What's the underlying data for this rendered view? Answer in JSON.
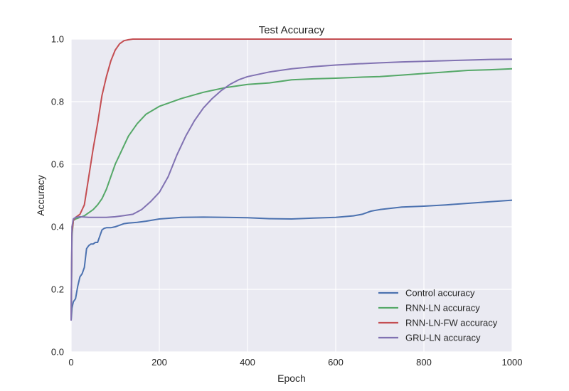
{
  "chart_data": {
    "type": "line",
    "title": "Test Accuracy",
    "xlabel": "Epoch",
    "ylabel": "Accuracy",
    "xlim": [
      0,
      1000
    ],
    "ylim": [
      0.0,
      1.0
    ],
    "xticks": [
      0,
      200,
      400,
      600,
      800,
      1000
    ],
    "yticks": [
      0.0,
      0.2,
      0.4,
      0.6,
      0.8,
      1.0
    ],
    "xtick_labels": [
      "0",
      "200",
      "400",
      "600",
      "800",
      "1000"
    ],
    "ytick_labels": [
      "0.0",
      "0.2",
      "0.4",
      "0.6",
      "0.8",
      "1.0"
    ],
    "grid": true,
    "legend_position": "lower-right",
    "series": [
      {
        "name": "Control accuracy",
        "color": "#4c72b0",
        "x": [
          0,
          2,
          5,
          10,
          15,
          20,
          25,
          30,
          35,
          40,
          45,
          50,
          55,
          60,
          65,
          70,
          75,
          80,
          90,
          100,
          110,
          120,
          130,
          140,
          150,
          170,
          200,
          250,
          300,
          350,
          400,
          450,
          500,
          550,
          600,
          640,
          660,
          680,
          700,
          750,
          800,
          850,
          900,
          950,
          1000
        ],
        "y": [
          0.1,
          0.14,
          0.16,
          0.17,
          0.21,
          0.24,
          0.25,
          0.27,
          0.33,
          0.34,
          0.345,
          0.345,
          0.35,
          0.35,
          0.37,
          0.39,
          0.395,
          0.397,
          0.397,
          0.4,
          0.405,
          0.41,
          0.412,
          0.413,
          0.414,
          0.418,
          0.425,
          0.43,
          0.431,
          0.43,
          0.429,
          0.426,
          0.425,
          0.428,
          0.43,
          0.435,
          0.44,
          0.45,
          0.455,
          0.463,
          0.466,
          0.47,
          0.475,
          0.48,
          0.485
        ]
      },
      {
        "name": "RNN-LN accuracy",
        "color": "#55a868",
        "x": [
          0,
          2,
          5,
          10,
          20,
          30,
          40,
          50,
          60,
          70,
          80,
          90,
          100,
          110,
          120,
          130,
          140,
          150,
          170,
          200,
          250,
          300,
          350,
          400,
          450,
          500,
          550,
          600,
          650,
          700,
          750,
          800,
          850,
          900,
          950,
          1000
        ],
        "y": [
          0.1,
          0.37,
          0.42,
          0.425,
          0.43,
          0.435,
          0.445,
          0.455,
          0.47,
          0.49,
          0.52,
          0.56,
          0.6,
          0.63,
          0.66,
          0.69,
          0.71,
          0.73,
          0.76,
          0.785,
          0.81,
          0.83,
          0.845,
          0.855,
          0.86,
          0.87,
          0.873,
          0.875,
          0.878,
          0.88,
          0.885,
          0.89,
          0.895,
          0.9,
          0.902,
          0.905
        ]
      },
      {
        "name": "RNN-LN-FW accuracy",
        "color": "#c44e52",
        "x": [
          0,
          2,
          5,
          10,
          20,
          30,
          40,
          50,
          60,
          70,
          80,
          90,
          100,
          110,
          120,
          130,
          140,
          150,
          200,
          300,
          400,
          500,
          600,
          700,
          800,
          900,
          1000
        ],
        "y": [
          0.1,
          0.38,
          0.42,
          0.43,
          0.44,
          0.47,
          0.56,
          0.65,
          0.73,
          0.82,
          0.88,
          0.93,
          0.965,
          0.985,
          0.995,
          0.998,
          1.0,
          1.0,
          1.0,
          1.0,
          1.0,
          1.0,
          1.0,
          1.0,
          1.0,
          1.0,
          1.0
        ]
      },
      {
        "name": "GRU-LN accuracy",
        "color": "#8172b2",
        "x": [
          0,
          2,
          5,
          10,
          20,
          40,
          60,
          80,
          100,
          120,
          140,
          160,
          180,
          200,
          220,
          240,
          260,
          280,
          300,
          320,
          340,
          360,
          380,
          400,
          450,
          500,
          550,
          600,
          650,
          700,
          750,
          800,
          850,
          900,
          950,
          1000
        ],
        "y": [
          0.1,
          0.4,
          0.425,
          0.43,
          0.432,
          0.43,
          0.43,
          0.43,
          0.432,
          0.436,
          0.44,
          0.455,
          0.48,
          0.51,
          0.56,
          0.63,
          0.69,
          0.74,
          0.78,
          0.81,
          0.835,
          0.855,
          0.87,
          0.88,
          0.895,
          0.905,
          0.912,
          0.917,
          0.921,
          0.924,
          0.927,
          0.929,
          0.931,
          0.933,
          0.935,
          0.936
        ]
      }
    ]
  }
}
